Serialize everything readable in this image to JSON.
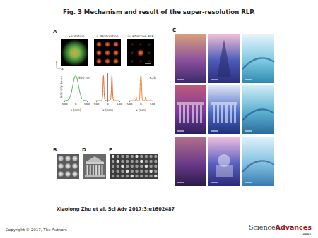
{
  "title": "Fig. 3 Mechanism and result of the super-resolution RLP.",
  "panels": {
    "A": {
      "label": "A",
      "steps": [
        "i. Excitation",
        "ii. Modulation",
        "iii. Effective RLP"
      ],
      "axes": [
        "y",
        "x"
      ]
    },
    "B": {
      "label": "B"
    },
    "C": {
      "label": "C"
    },
    "D": {
      "label": "D"
    },
    "E": {
      "label": "E"
    }
  },
  "chart_data": [
    {
      "type": "line",
      "color": "#4caf50",
      "x_label": "x (nm)",
      "y_label": "Intensity (a.u.)",
      "annotation": "300 nm",
      "x": [
        -500,
        -400,
        -300,
        -250,
        -200,
        -150,
        -100,
        -50,
        0,
        50,
        100,
        150,
        200,
        250,
        300,
        400,
        500
      ],
      "values": [
        0.0,
        0.01,
        0.06,
        0.15,
        0.29,
        0.5,
        0.73,
        0.93,
        1.0,
        0.93,
        0.73,
        0.5,
        0.29,
        0.15,
        0.06,
        0.01,
        0.0
      ],
      "xlim": [
        -500,
        500
      ],
      "xticks": [
        -500,
        0,
        500
      ],
      "ylim": [
        0,
        1.1
      ],
      "tick_labels": "x"
    },
    {
      "type": "line",
      "color": "#e8682a",
      "x_label": "x (nm)",
      "x": [
        -500,
        -400,
        -300,
        -250,
        -220,
        -200,
        -180,
        -160,
        -140,
        -100,
        0,
        100,
        140,
        160,
        180,
        200,
        220,
        250,
        300,
        400,
        500
      ],
      "values": [
        0,
        0,
        0,
        0.02,
        0.2,
        0.6,
        1.0,
        0.6,
        0.2,
        0.02,
        0,
        0.02,
        0.2,
        0.6,
        1.0,
        0.6,
        0.2,
        0.02,
        0,
        0,
        0
      ],
      "xlim": [
        -500,
        500
      ],
      "xticks": [
        -500,
        0,
        500
      ],
      "ylim": [
        0,
        1.1
      ],
      "tick_labels": "x"
    },
    {
      "type": "line",
      "color": "#f08030",
      "x_label": "x (nm)",
      "annotation": "≤2R",
      "x": [
        -500,
        -300,
        -250,
        -220,
        -200,
        -180,
        -150,
        -100,
        -60,
        -40,
        -20,
        0,
        20,
        40,
        60,
        100,
        150,
        180,
        200,
        220,
        250,
        300,
        500
      ],
      "values": [
        0,
        0,
        0.01,
        0.05,
        0.15,
        0.05,
        0.01,
        0,
        0.05,
        0.4,
        0.85,
        1.0,
        0.85,
        0.4,
        0.05,
        0,
        0.01,
        0.05,
        0.15,
        0.05,
        0.01,
        0,
        0
      ],
      "xlim": [
        -500,
        500
      ],
      "xticks": [
        -500,
        0,
        500
      ],
      "ylim": [
        0,
        1.1
      ],
      "tick_labels": "x"
    }
  ],
  "citation": "Xiaolong Zhu et al. Sci Adv 2017;3:e1602487",
  "copyright": "Copyright © 2017, The Authors",
  "logo": [
    "Science",
    "Advances"
  ],
  "logo_sub": "AAAS"
}
